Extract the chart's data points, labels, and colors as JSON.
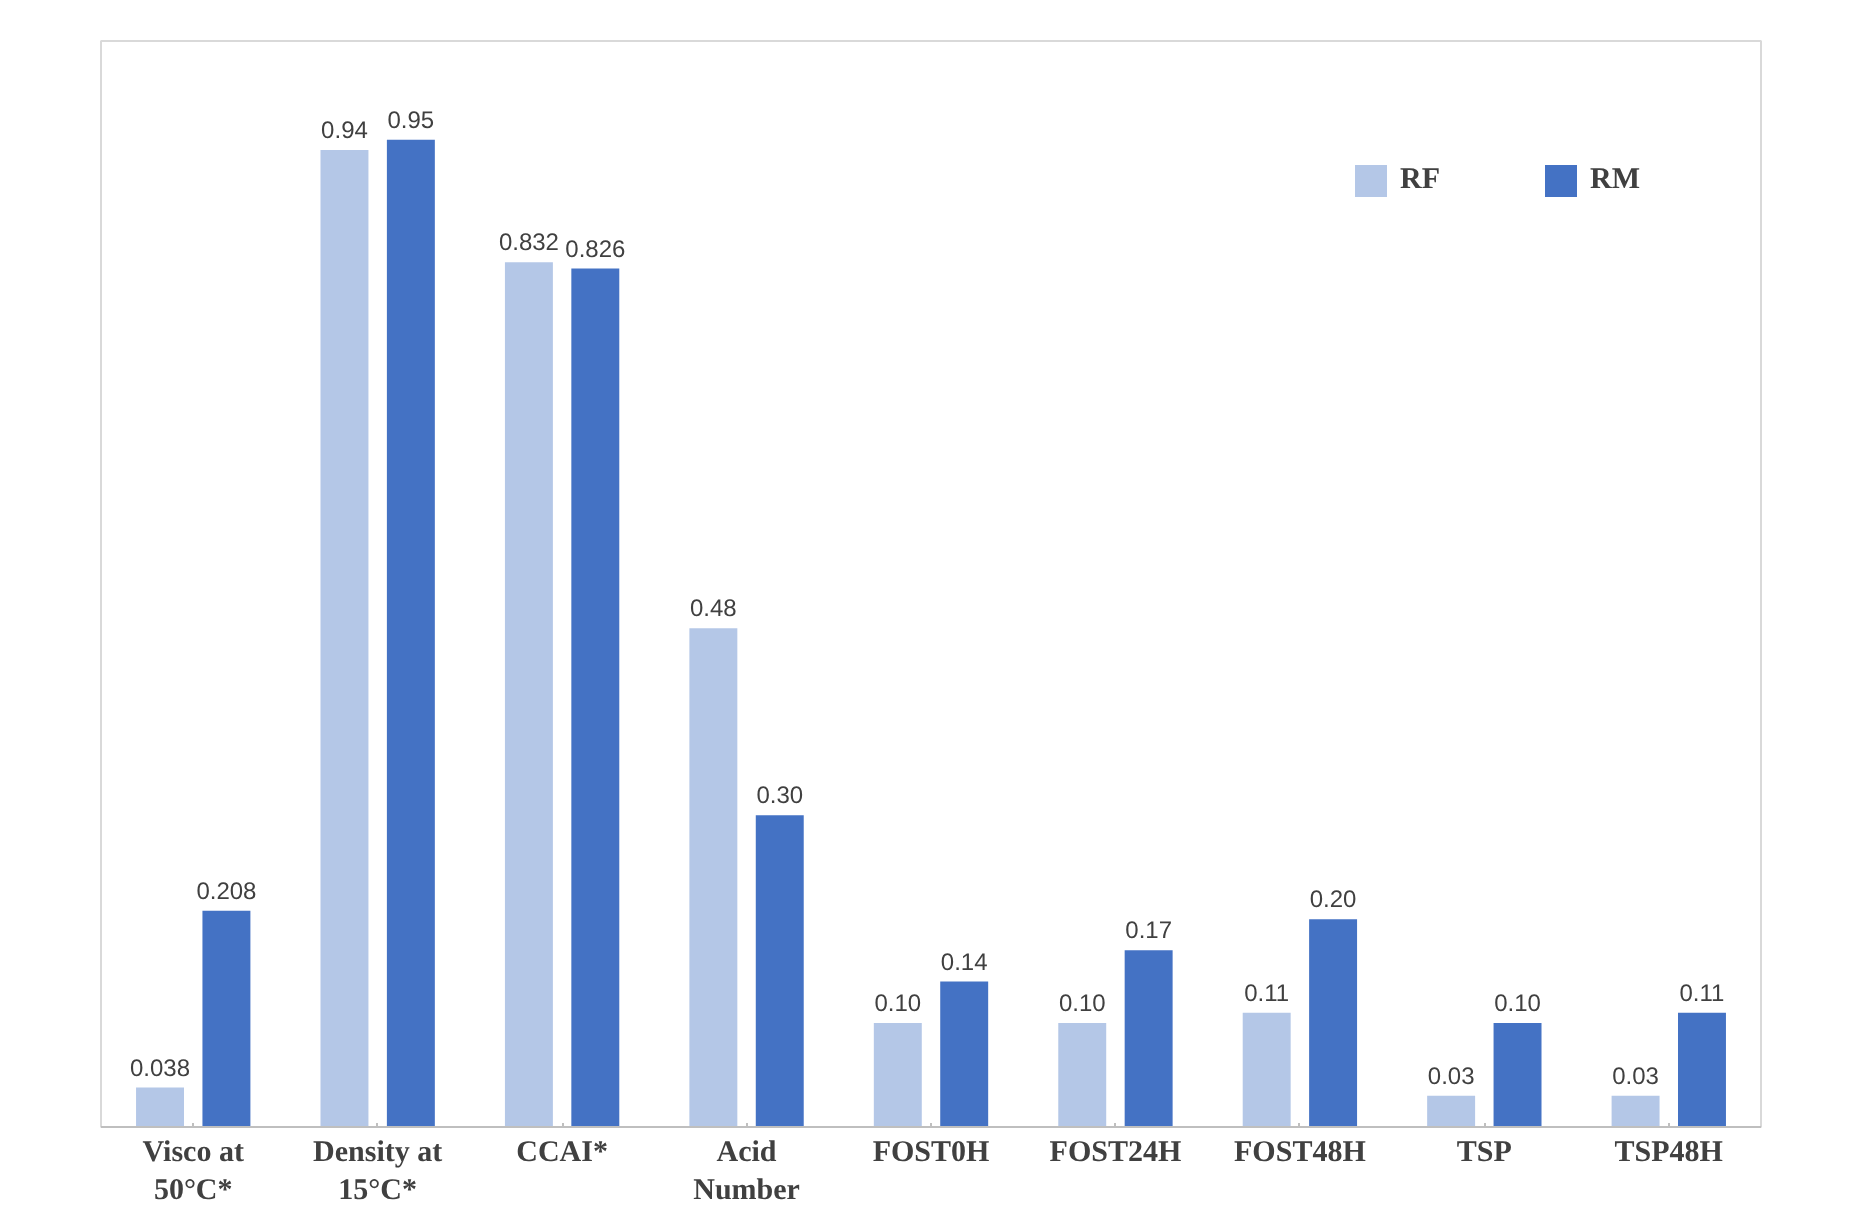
{
  "chart_data": {
    "type": "bar",
    "categories": [
      "Visco at 50°C*",
      "Density at 15°C*",
      "CCAI*",
      "Acid Number",
      "FOST0H",
      "FOST24H",
      "FOST48H",
      "TSP",
      "TSP48H"
    ],
    "series": [
      {
        "name": "RF",
        "color": "#b4c7e7",
        "values": [
          0.038,
          0.94,
          0.832,
          0.48,
          0.1,
          0.1,
          0.11,
          0.03,
          0.03
        ],
        "value_labels": [
          "0.038",
          "0.94",
          "0.832",
          "0.48",
          "0.10",
          "0.10",
          "0.11",
          "0.03",
          "0.03"
        ]
      },
      {
        "name": "RM",
        "color": "#4472c4",
        "values": [
          0.208,
          0.95,
          0.826,
          0.3,
          0.14,
          0.17,
          0.2,
          0.1,
          0.11
        ],
        "value_labels": [
          "0.208",
          "0.95",
          "0.826",
          "0.30",
          "0.14",
          "0.17",
          "0.20",
          "0.10",
          "0.11"
        ]
      }
    ],
    "grid": false,
    "legend": "top right"
  }
}
